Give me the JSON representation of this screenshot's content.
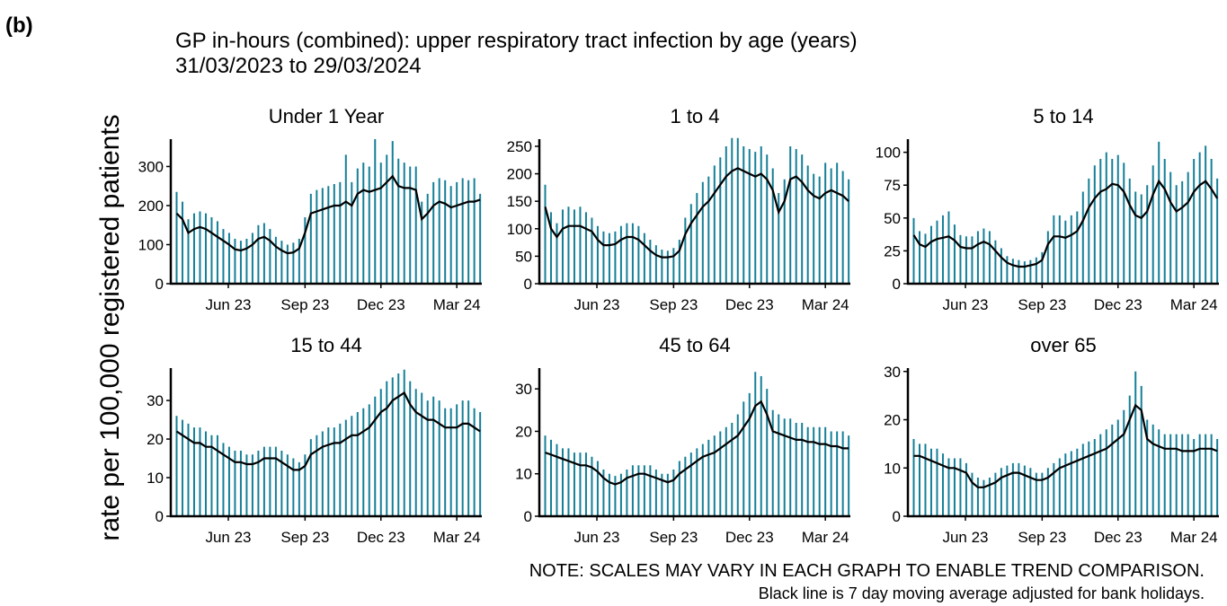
{
  "panel_label": "(b)",
  "title": "GP in-hours (combined): upper respiratory tract infection by age (years)",
  "subtitle": "31/03/2023 to 29/03/2024",
  "y_label": "rate per 100,000 registered patients",
  "notes": [
    "NOTE: SCALES MAY VARY IN EACH GRAPH TO ENABLE TREND COMPARISON.",
    "Black line is 7 day moving average adjusted for bank holidays."
  ],
  "chart_data": [
    {
      "type": "line",
      "title": "Under 1 Year",
      "x": [
        0,
        7,
        14,
        21,
        28,
        35,
        42,
        49,
        56,
        63,
        70,
        77,
        84,
        91,
        98,
        105,
        112,
        119,
        126,
        133,
        140,
        147,
        154,
        161,
        168,
        175,
        182,
        189,
        196,
        203,
        210,
        217,
        224,
        231,
        238,
        245,
        252,
        259,
        266,
        273,
        280,
        287,
        294,
        301,
        308,
        315,
        322,
        329,
        336,
        343,
        350,
        357,
        364
      ],
      "xlim": [
        -7,
        366
      ],
      "xticks": [
        {
          "value": 62,
          "label": "Jun 23"
        },
        {
          "value": 154,
          "label": "Sep 23"
        },
        {
          "value": 245,
          "label": "Dec 23"
        },
        {
          "value": 336,
          "label": "Mar 24"
        }
      ],
      "ylim": [
        0,
        370
      ],
      "yticks": [
        0,
        100,
        200,
        300
      ],
      "series": [
        {
          "color": "#157f97",
          "values": [
            235,
            210,
            165,
            180,
            185,
            180,
            170,
            160,
            140,
            130,
            115,
            110,
            115,
            130,
            150,
            155,
            140,
            120,
            110,
            100,
            105,
            115,
            170,
            230,
            240,
            245,
            250,
            255,
            260,
            330,
            260,
            295,
            310,
            300,
            370,
            310,
            330,
            365,
            320,
            310,
            300,
            300,
            210,
            230,
            260,
            270,
            265,
            250,
            260,
            270,
            265,
            270,
            230
          ]
        },
        {
          "color": "#000000",
          "values": [
            180,
            165,
            130,
            140,
            145,
            140,
            130,
            120,
            110,
            100,
            88,
            85,
            90,
            100,
            115,
            120,
            110,
            95,
            85,
            78,
            80,
            90,
            130,
            180,
            185,
            190,
            195,
            200,
            200,
            210,
            200,
            230,
            240,
            235,
            240,
            245,
            260,
            275,
            250,
            245,
            245,
            240,
            165,
            180,
            200,
            210,
            205,
            195,
            200,
            205,
            210,
            210,
            215
          ]
        }
      ]
    },
    {
      "type": "line",
      "title": "1 to 4",
      "x": [
        0,
        7,
        14,
        21,
        28,
        35,
        42,
        49,
        56,
        63,
        70,
        77,
        84,
        91,
        98,
        105,
        112,
        119,
        126,
        133,
        140,
        147,
        154,
        161,
        168,
        175,
        182,
        189,
        196,
        203,
        210,
        217,
        224,
        231,
        238,
        245,
        252,
        259,
        266,
        273,
        280,
        287,
        294,
        301,
        308,
        315,
        322,
        329,
        336,
        343,
        350,
        357,
        364
      ],
      "xlim": [
        -7,
        366
      ],
      "xticks": [
        {
          "value": 62,
          "label": "Jun 23"
        },
        {
          "value": 154,
          "label": "Sep 23"
        },
        {
          "value": 245,
          "label": "Dec 23"
        },
        {
          "value": 336,
          "label": "Mar 24"
        }
      ],
      "ylim": [
        0,
        263
      ],
      "yticks": [
        0,
        50,
        100,
        150,
        200,
        250
      ],
      "series": [
        {
          "color": "#157f97",
          "values": [
            180,
            130,
            110,
            135,
            140,
            135,
            140,
            130,
            120,
            105,
            95,
            92,
            95,
            105,
            110,
            110,
            105,
            92,
            80,
            70,
            62,
            60,
            65,
            80,
            120,
            145,
            165,
            185,
            195,
            215,
            230,
            250,
            265,
            265,
            250,
            245,
            240,
            250,
            235,
            210,
            165,
            190,
            250,
            245,
            235,
            215,
            200,
            195,
            220,
            210,
            220,
            205,
            190
          ]
        },
        {
          "color": "#000000",
          "values": [
            140,
            100,
            85,
            100,
            105,
            105,
            105,
            100,
            95,
            80,
            70,
            70,
            72,
            80,
            85,
            85,
            80,
            70,
            60,
            52,
            48,
            48,
            50,
            60,
            90,
            110,
            125,
            140,
            150,
            165,
            180,
            195,
            205,
            210,
            205,
            200,
            195,
            200,
            190,
            170,
            130,
            150,
            190,
            195,
            185,
            170,
            160,
            155,
            165,
            170,
            165,
            160,
            150
          ]
        }
      ]
    },
    {
      "type": "line",
      "title": "5 to 14",
      "x": [
        0,
        7,
        14,
        21,
        28,
        35,
        42,
        49,
        56,
        63,
        70,
        77,
        84,
        91,
        98,
        105,
        112,
        119,
        126,
        133,
        140,
        147,
        154,
        161,
        168,
        175,
        182,
        189,
        196,
        203,
        210,
        217,
        224,
        231,
        238,
        245,
        252,
        259,
        266,
        273,
        280,
        287,
        294,
        301,
        308,
        315,
        322,
        329,
        336,
        343,
        350,
        357,
        364
      ],
      "xlim": [
        -7,
        366
      ],
      "xticks": [
        {
          "value": 62,
          "label": "Jun 23"
        },
        {
          "value": 154,
          "label": "Sep 23"
        },
        {
          "value": 245,
          "label": "Dec 23"
        },
        {
          "value": 336,
          "label": "Mar 24"
        }
      ],
      "ylim": [
        0,
        110
      ],
      "yticks": [
        0,
        25,
        50,
        75,
        100
      ],
      "series": [
        {
          "color": "#157f97",
          "values": [
            50,
            40,
            38,
            44,
            48,
            52,
            55,
            45,
            37,
            36,
            36,
            40,
            42,
            40,
            33,
            27,
            21,
            19,
            18,
            17,
            18,
            20,
            24,
            40,
            52,
            52,
            48,
            52,
            55,
            70,
            80,
            90,
            95,
            100,
            95,
            98,
            92,
            80,
            70,
            68,
            75,
            90,
            108,
            95,
            85,
            75,
            78,
            85,
            95,
            100,
            105,
            95,
            80
          ]
        },
        {
          "color": "#000000",
          "values": [
            37,
            30,
            28,
            32,
            34,
            35,
            36,
            33,
            28,
            27,
            27,
            30,
            32,
            30,
            25,
            20,
            16,
            14,
            13,
            13,
            14,
            15,
            18,
            30,
            36,
            36,
            35,
            37,
            40,
            48,
            58,
            65,
            70,
            72,
            76,
            75,
            70,
            60,
            52,
            50,
            55,
            68,
            78,
            72,
            62,
            55,
            58,
            62,
            70,
            75,
            78,
            72,
            65
          ]
        }
      ]
    },
    {
      "type": "line",
      "title": "15 to 44",
      "x": [
        0,
        7,
        14,
        21,
        28,
        35,
        42,
        49,
        56,
        63,
        70,
        77,
        84,
        91,
        98,
        105,
        112,
        119,
        126,
        133,
        140,
        147,
        154,
        161,
        168,
        175,
        182,
        189,
        196,
        203,
        210,
        217,
        224,
        231,
        238,
        245,
        252,
        259,
        266,
        273,
        280,
        287,
        294,
        301,
        308,
        315,
        322,
        329,
        336,
        343,
        350,
        357,
        364
      ],
      "xlim": [
        -7,
        366
      ],
      "xticks": [
        {
          "value": 62,
          "label": "Jun 23"
        },
        {
          "value": 154,
          "label": "Sep 23"
        },
        {
          "value": 245,
          "label": "Dec 23"
        },
        {
          "value": 336,
          "label": "Mar 24"
        }
      ],
      "ylim": [
        0,
        38.4
      ],
      "yticks": [
        0,
        10,
        20,
        30
      ],
      "series": [
        {
          "color": "#157f97",
          "values": [
            26,
            25,
            24,
            23,
            23,
            22,
            21,
            21,
            19,
            18,
            17,
            17,
            16,
            16,
            17,
            18,
            18,
            18,
            17,
            16,
            15,
            14,
            16,
            20,
            21,
            22,
            23,
            23,
            24,
            25,
            26,
            27,
            28,
            29,
            31,
            33,
            35,
            36,
            37,
            38,
            35,
            33,
            32,
            30,
            31,
            30,
            28,
            28,
            29,
            30,
            30,
            28,
            27
          ]
        },
        {
          "color": "#000000",
          "values": [
            22,
            21,
            20,
            19,
            19,
            18,
            18,
            17,
            16,
            15,
            14,
            14,
            13.5,
            13.5,
            14,
            15,
            15,
            15,
            14,
            13,
            12,
            12,
            13,
            16,
            17,
            18,
            18.5,
            19,
            19,
            20,
            21,
            21,
            22,
            23,
            25,
            27,
            28,
            30,
            31,
            32,
            29,
            27,
            26,
            25,
            25,
            24,
            23,
            23,
            23,
            24,
            24,
            23,
            22
          ]
        }
      ]
    },
    {
      "type": "line",
      "title": "45 to 64",
      "x": [
        0,
        7,
        14,
        21,
        28,
        35,
        42,
        49,
        56,
        63,
        70,
        77,
        84,
        91,
        98,
        105,
        112,
        119,
        126,
        133,
        140,
        147,
        154,
        161,
        168,
        175,
        182,
        189,
        196,
        203,
        210,
        217,
        224,
        231,
        238,
        245,
        252,
        259,
        266,
        273,
        280,
        287,
        294,
        301,
        308,
        315,
        322,
        329,
        336,
        343,
        350,
        357,
        364
      ],
      "xlim": [
        -7,
        366
      ],
      "xticks": [
        {
          "value": 62,
          "label": "Jun 23"
        },
        {
          "value": 154,
          "label": "Sep 23"
        },
        {
          "value": 245,
          "label": "Dec 23"
        },
        {
          "value": 336,
          "label": "Mar 24"
        }
      ],
      "ylim": [
        0,
        34.9
      ],
      "yticks": [
        0,
        10,
        20,
        30
      ],
      "series": [
        {
          "color": "#157f97",
          "values": [
            19,
            18,
            17,
            16,
            16,
            15,
            15,
            15,
            14,
            13,
            11,
            10,
            9.5,
            10,
            11,
            12,
            12,
            12,
            12,
            11,
            10,
            10,
            11,
            13,
            14,
            15,
            16,
            17,
            18,
            19,
            20,
            21,
            22,
            24,
            27,
            29,
            34,
            33,
            30,
            25,
            24,
            23,
            23,
            22,
            22,
            21,
            21,
            21,
            21,
            20,
            20,
            20,
            19
          ]
        },
        {
          "color": "#000000",
          "values": [
            15,
            14.5,
            14,
            13.5,
            13,
            12.5,
            12,
            12,
            11.5,
            10.5,
            9,
            8,
            7.5,
            8,
            9,
            9.5,
            10,
            10,
            9.5,
            9,
            8.5,
            8,
            8.5,
            10,
            11,
            12,
            13,
            14,
            14.5,
            15,
            16,
            17,
            18,
            19,
            21,
            23,
            26,
            27,
            24,
            20,
            19.5,
            19,
            18.5,
            18,
            18,
            17.5,
            17.5,
            17,
            17,
            16.5,
            16.5,
            16,
            16
          ]
        }
      ]
    },
    {
      "type": "line",
      "title": "over 65",
      "x": [
        0,
        7,
        14,
        21,
        28,
        35,
        42,
        49,
        56,
        63,
        70,
        77,
        84,
        91,
        98,
        105,
        112,
        119,
        126,
        133,
        140,
        147,
        154,
        161,
        168,
        175,
        182,
        189,
        196,
        203,
        210,
        217,
        224,
        231,
        238,
        245,
        252,
        259,
        266,
        273,
        280,
        287,
        294,
        301,
        308,
        315,
        322,
        329,
        336,
        343,
        350,
        357,
        364
      ],
      "xlim": [
        -7,
        366
      ],
      "xticks": [
        {
          "value": 62,
          "label": "Jun 23"
        },
        {
          "value": 154,
          "label": "Sep 23"
        },
        {
          "value": 245,
          "label": "Dec 23"
        },
        {
          "value": 336,
          "label": "Mar 24"
        }
      ],
      "ylim": [
        0,
        30.7
      ],
      "yticks": [
        0,
        10,
        20,
        30
      ],
      "series": [
        {
          "color": "#157f97",
          "values": [
            16,
            15,
            15,
            14,
            14,
            13,
            12,
            12,
            12,
            11,
            9,
            8,
            7.5,
            8,
            9,
            10,
            10.5,
            11,
            11,
            10.5,
            10,
            9,
            9,
            10,
            11,
            12,
            13,
            13.5,
            14,
            15,
            15.5,
            16,
            17,
            18,
            19,
            20,
            22,
            25,
            30,
            27,
            20,
            19,
            18,
            17,
            17,
            17,
            17,
            17,
            16,
            17,
            17,
            17,
            16
          ]
        },
        {
          "color": "#000000",
          "values": [
            12.5,
            12.5,
            12,
            11.5,
            11,
            10.5,
            10,
            10,
            9.5,
            9,
            7,
            6,
            6,
            6.5,
            7,
            8,
            8.5,
            9,
            9,
            8.5,
            8,
            7.5,
            7.5,
            8,
            9,
            10,
            10.5,
            11,
            11.5,
            12,
            12.5,
            13,
            13.5,
            14,
            15,
            16,
            17,
            20,
            23,
            22,
            16,
            15,
            14.5,
            14,
            14,
            14,
            13.5,
            13.5,
            13.5,
            14,
            14,
            14,
            13.5
          ]
        }
      ]
    }
  ]
}
